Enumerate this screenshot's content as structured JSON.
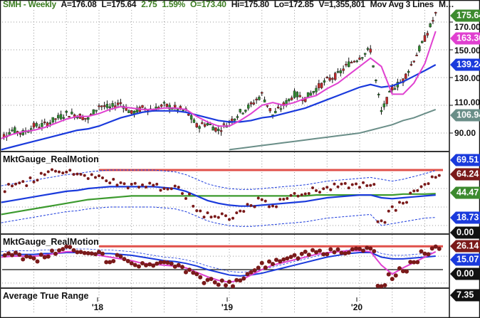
{
  "header": {
    "symbol": "SMH - Weekly",
    "ask": "A=176.08",
    "last": "L=175.64",
    "change": "2.75",
    "change_pct": "1.59%",
    "open": "O=173.40",
    "high": "Hi=175.80",
    "low": "Lo=172.85",
    "volume": "V=1,355,801",
    "study": "Mov Avg 3 Lines",
    "more": "M…"
  },
  "panels": {
    "realmotion_1_title": "MktGauge_RealMotion",
    "realmotion_2_title": "MktGauge_RealMotion",
    "atr_title": "Average True Range"
  },
  "axis": {
    "price_ticks": [
      "170.00",
      "150.00",
      "130.00",
      "110.00",
      "90.00"
    ],
    "x_labels": [
      "'18",
      "'19",
      "'20"
    ]
  },
  "badges": {
    "last_price": {
      "text": "175.64",
      "color": "#3c8a2e"
    },
    "ma_fast": {
      "text": "163.36",
      "color": "#e040d0"
    },
    "ma_mid": {
      "text": "139.24",
      "color": "#1a3adc"
    },
    "ma_slow": {
      "text": "106.94",
      "color": "#6a8e88"
    },
    "rm1_upper": {
      "text": "69.51",
      "color": "#1a3adc"
    },
    "rm1_value": {
      "text": "64.24",
      "color": "#7a1a1a"
    },
    "rm1_green": {
      "text": "44.47",
      "color": "#3c8a2e"
    },
    "rm1_lower": {
      "text": "18.73",
      "color": "#1a3adc"
    },
    "rm1_zero": {
      "text": "0.00",
      "color": "#111111"
    },
    "rm2_value": {
      "text": "26.14",
      "color": "#7a1a1a"
    },
    "rm2_blue": {
      "text": "15.07",
      "color": "#1a3adc"
    },
    "rm2_zero": {
      "text": "0.00",
      "color": "#111111"
    },
    "atr": {
      "text": "7.35",
      "color": "#111111"
    }
  },
  "chart_data": {
    "type": "line",
    "title": "SMH - Weekly",
    "start_month": "2017-04",
    "interval": "monthly",
    "x_labels": [
      "'18",
      "'19",
      "'20"
    ],
    "grid": true,
    "price": {
      "close": [
        87,
        92,
        90,
        95,
        96,
        100,
        104,
        103,
        100,
        110,
        108,
        112,
        104,
        108,
        107,
        110,
        108,
        106,
        95,
        97,
        92,
        98,
        105,
        110,
        118,
        103,
        110,
        118,
        115,
        122,
        128,
        132,
        140,
        145,
        150,
        105,
        122,
        128,
        143,
        158,
        175.64
      ],
      "ma_fast": [
        86,
        89,
        91,
        92,
        94,
        97,
        100,
        102,
        102,
        104,
        107,
        109,
        108,
        107,
        107,
        108,
        108,
        107,
        102,
        98,
        95,
        95,
        99,
        104,
        110,
        112,
        110,
        112,
        115,
        117,
        122,
        126,
        132,
        138,
        144,
        138,
        118,
        118,
        126,
        140,
        163.36
      ],
      "ma_mid": [
        78,
        80,
        82,
        84,
        86,
        88,
        90,
        92,
        93,
        95,
        98,
        101,
        103,
        105,
        106,
        106,
        106,
        105,
        103,
        101,
        99,
        98,
        98,
        99,
        101,
        102,
        104,
        106,
        108,
        111,
        114,
        117,
        120,
        123,
        125,
        123,
        124,
        127,
        131,
        135,
        139.24
      ],
      "ma_slow_start": "2019-01",
      "ma_slow": [
        78,
        79,
        80,
        81,
        82,
        83,
        84,
        85,
        86,
        87,
        88,
        89,
        90,
        92,
        94,
        96,
        99,
        101,
        104,
        106.94
      ],
      "colors": {
        "up": "#2e8b2e",
        "down": "#c0282a",
        "ma_fast": "#e040d0",
        "ma_mid": "#1a3adc",
        "ma_slow": "#6a8e88"
      }
    },
    "realmotion_1": {
      "dots": [
        48,
        52,
        55,
        60,
        66,
        70,
        69,
        64,
        63,
        62,
        58,
        55,
        53,
        52,
        55,
        50,
        50,
        42,
        28,
        22,
        20,
        19,
        25,
        33,
        38,
        30,
        40,
        44,
        46,
        48,
        50,
        52,
        53,
        54,
        52,
        15,
        28,
        36,
        45,
        55,
        64.24
      ],
      "blue": [
        35,
        37,
        39,
        41,
        43,
        45,
        47,
        48,
        50,
        51,
        52,
        52,
        52,
        52,
        52,
        51,
        50,
        47,
        42,
        37,
        34,
        32,
        31,
        31,
        32,
        33,
        34,
        35,
        36,
        38,
        40,
        41,
        42,
        43,
        43,
        40,
        39,
        40,
        41,
        42,
        43
      ],
      "green": [
        22,
        24,
        26,
        28,
        30,
        32,
        34,
        36,
        38,
        39,
        40,
        41,
        42,
        42,
        42,
        42,
        42,
        42,
        42,
        42,
        42,
        42,
        42,
        42,
        42,
        42,
        42,
        42,
        42,
        43,
        43,
        43,
        43,
        43,
        43,
        43,
        43,
        44,
        44,
        44,
        44.47
      ],
      "upper": [
        53,
        55,
        57,
        59,
        61,
        63,
        65,
        66,
        68,
        69,
        70,
        70,
        70,
        70,
        70,
        69,
        68,
        65,
        60,
        55,
        52,
        50,
        49,
        49,
        50,
        51,
        52,
        53,
        54,
        56,
        58,
        59,
        60,
        61,
        62,
        60,
        58,
        60,
        63,
        66,
        69.51
      ],
      "lower": [
        13,
        15,
        17,
        19,
        21,
        23,
        25,
        26,
        28,
        29,
        30,
        30,
        30,
        30,
        30,
        29,
        28,
        25,
        20,
        15,
        12,
        10,
        9,
        9,
        10,
        11,
        12,
        13,
        14,
        16,
        18,
        19,
        20,
        21,
        22,
        10,
        12,
        14,
        16,
        18,
        18.73
      ],
      "red_level": 70,
      "red_level_start": "2018-01"
    },
    "realmotion_2": {
      "dots": [
        15,
        18,
        14,
        12,
        16,
        20,
        23,
        22,
        16,
        18,
        10,
        14,
        8,
        5,
        4,
        6,
        5,
        0,
        -6,
        -12,
        -15,
        -16,
        -10,
        -2,
        5,
        8,
        10,
        14,
        17,
        19,
        20,
        21,
        21,
        22,
        22,
        -20,
        -8,
        0,
        8,
        18,
        26.14
      ],
      "magenta": [
        14,
        15,
        15,
        15,
        16,
        18,
        20,
        20,
        18,
        16,
        14,
        12,
        10,
        7,
        6,
        5,
        4,
        2,
        -3,
        -8,
        -12,
        -14,
        -12,
        -6,
        0,
        5,
        8,
        11,
        14,
        17,
        19,
        20,
        21,
        21,
        20,
        5,
        -5,
        2,
        8,
        14,
        20
      ],
      "blue": [
        16,
        17,
        17,
        17,
        18,
        18,
        19,
        19,
        19,
        18,
        18,
        17,
        16,
        14,
        12,
        10,
        9,
        7,
        4,
        0,
        -3,
        -6,
        -7,
        -6,
        -4,
        -1,
        2,
        5,
        8,
        11,
        14,
        16,
        18,
        19,
        19,
        14,
        12,
        12,
        13,
        14,
        15.07
      ],
      "red_level": 26,
      "red_level_start": "2018-01",
      "zero": 0
    },
    "atr": {
      "last": 7.35
    }
  }
}
